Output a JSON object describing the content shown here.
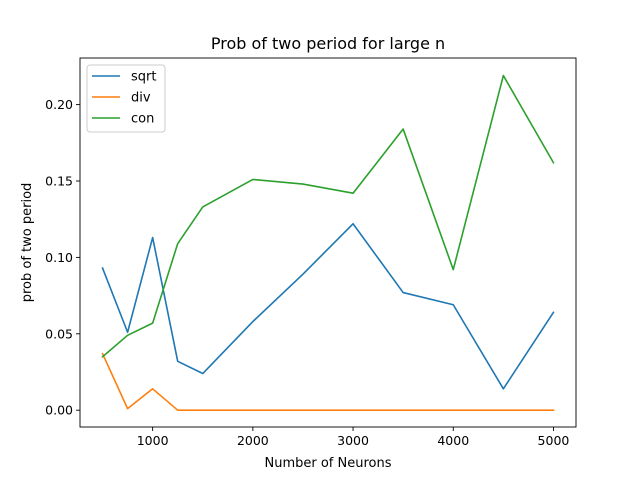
{
  "chart_data": {
    "type": "line",
    "title": "Prob of two period for large n",
    "xlabel": "Number of Neurons",
    "ylabel": "prob of two period",
    "x": [
      500,
      750,
      1000,
      1250,
      1500,
      2000,
      2500,
      3000,
      3500,
      4000,
      4500,
      5000
    ],
    "xlim": [
      275,
      5225
    ],
    "ylim": [
      -0.011,
      0.2305
    ],
    "xticks": [
      1000,
      2000,
      3000,
      4000,
      5000
    ],
    "xtick_labels": [
      "1000",
      "2000",
      "3000",
      "4000",
      "5000"
    ],
    "yticks": [
      0.0,
      0.05,
      0.1,
      0.15,
      0.2
    ],
    "ytick_labels": [
      "0.00",
      "0.05",
      "0.10",
      "0.15",
      "0.20"
    ],
    "grid": false,
    "legend_position": "top-left",
    "series": [
      {
        "name": "sqrt",
        "color": "#1f77b4",
        "values": [
          0.093,
          0.051,
          0.113,
          0.032,
          0.024,
          0.058,
          0.089,
          0.122,
          0.077,
          0.069,
          0.014,
          0.064
        ]
      },
      {
        "name": "div",
        "color": "#ff7f0e",
        "values": [
          0.037,
          0.001,
          0.014,
          0.0,
          0.0,
          0.0,
          0.0,
          0.0,
          0.0,
          0.0,
          0.0,
          0.0
        ]
      },
      {
        "name": "con",
        "color": "#2ca02c",
        "values": [
          0.035,
          0.049,
          0.057,
          0.109,
          0.133,
          0.151,
          0.148,
          0.142,
          0.184,
          0.092,
          0.219,
          0.162
        ]
      }
    ]
  }
}
